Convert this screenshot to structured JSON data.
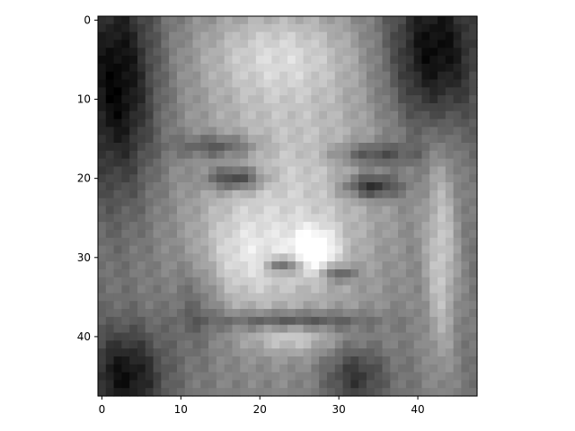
{
  "chart_data": {
    "type": "heatmap",
    "colormap": "gray",
    "xlim": [
      -0.5,
      47.5
    ],
    "ylim": [
      47.5,
      -0.5
    ],
    "xticks": [
      0,
      10,
      20,
      30,
      40
    ],
    "xtick_labels": [
      "0",
      "10",
      "20",
      "30",
      "40"
    ],
    "yticks": [
      0,
      10,
      20,
      30,
      40
    ],
    "ytick_labels": [
      "0",
      "10",
      "20",
      "30",
      "40"
    ],
    "grid": false,
    "image_size": [
      48,
      48
    ],
    "description_values": "48x48 grayscale pixel intensities approximated procedurally"
  }
}
